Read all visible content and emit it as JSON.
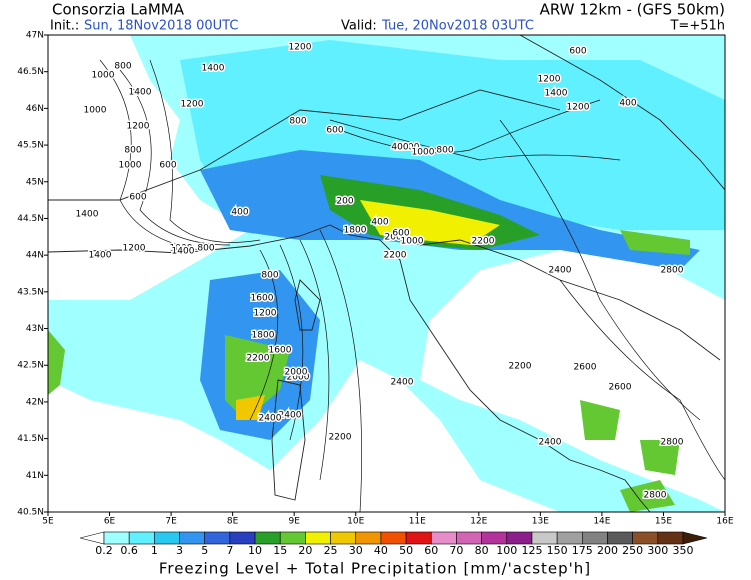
{
  "header": {
    "left_title": "Consorzia LaMMA",
    "init_label": "Init.:",
    "init_time": "Sun, 18Nov2018 00UTC",
    "model": "ARW 12km - (GFS 50km)",
    "valid_label": "Valid:",
    "valid_time": "Tue, 20Nov2018 03UTC",
    "lead": "T=+51h"
  },
  "map": {
    "lon_labels": [
      "5E",
      "6E",
      "7E",
      "8E",
      "9E",
      "10E",
      "11E",
      "12E",
      "13E",
      "14E",
      "15E",
      "16E"
    ],
    "lat_labels": [
      "47N",
      "46.5N",
      "46N",
      "45.5N",
      "45N",
      "44.5N",
      "44N",
      "43.5N",
      "43N",
      "42.5N",
      "42N",
      "41.5N",
      "41N",
      "40.5N"
    ],
    "contour_labels": [
      "1200",
      "1400",
      "1000",
      "800",
      "1400",
      "1200",
      "1000",
      "1200",
      "800",
      "1000",
      "600",
      "1400",
      "400",
      "800",
      "600",
      "600",
      "1200",
      "1000",
      "800",
      "400",
      "200",
      "1200",
      "1400",
      "1800",
      "2000",
      "600",
      "400",
      "1000",
      "800",
      "1000",
      "1200",
      "1400",
      "1600",
      "1200",
      "2000",
      "1400",
      "2400",
      "2200",
      "2200",
      "2400",
      "2400",
      "2200",
      "2600",
      "2600",
      "2800",
      "2400",
      "2800",
      "2800",
      "600",
      "1200",
      "2000",
      "400",
      "2200",
      "800",
      "1600",
      "1800",
      "2400",
      "2200"
    ]
  },
  "legend": {
    "labels": [
      "0.2",
      "0.6",
      "1",
      "3",
      "5",
      "7",
      "10",
      "15",
      "20",
      "25",
      "30",
      "40",
      "50",
      "60",
      "70",
      "80",
      "100",
      "125",
      "150",
      "175",
      "200",
      "250",
      "300",
      "350"
    ],
    "colors": [
      "#ffffff",
      "#a0ffff",
      "#60f0ff",
      "#28c8f0",
      "#3296f0",
      "#3264dc",
      "#2840c0",
      "#28a028",
      "#64c832",
      "#f0f000",
      "#f0c800",
      "#f09600",
      "#f05000",
      "#e01414",
      "#e68cc8",
      "#d264b4",
      "#b4329c",
      "#8c1e8c",
      "#c8c8c8",
      "#a0a0a0",
      "#828282",
      "#5a5a5a",
      "#8c5028",
      "#643214",
      "#3c1e0a"
    ]
  },
  "caption": "Freezing Level + Total Precipitation [mm/'acstep'h]"
}
